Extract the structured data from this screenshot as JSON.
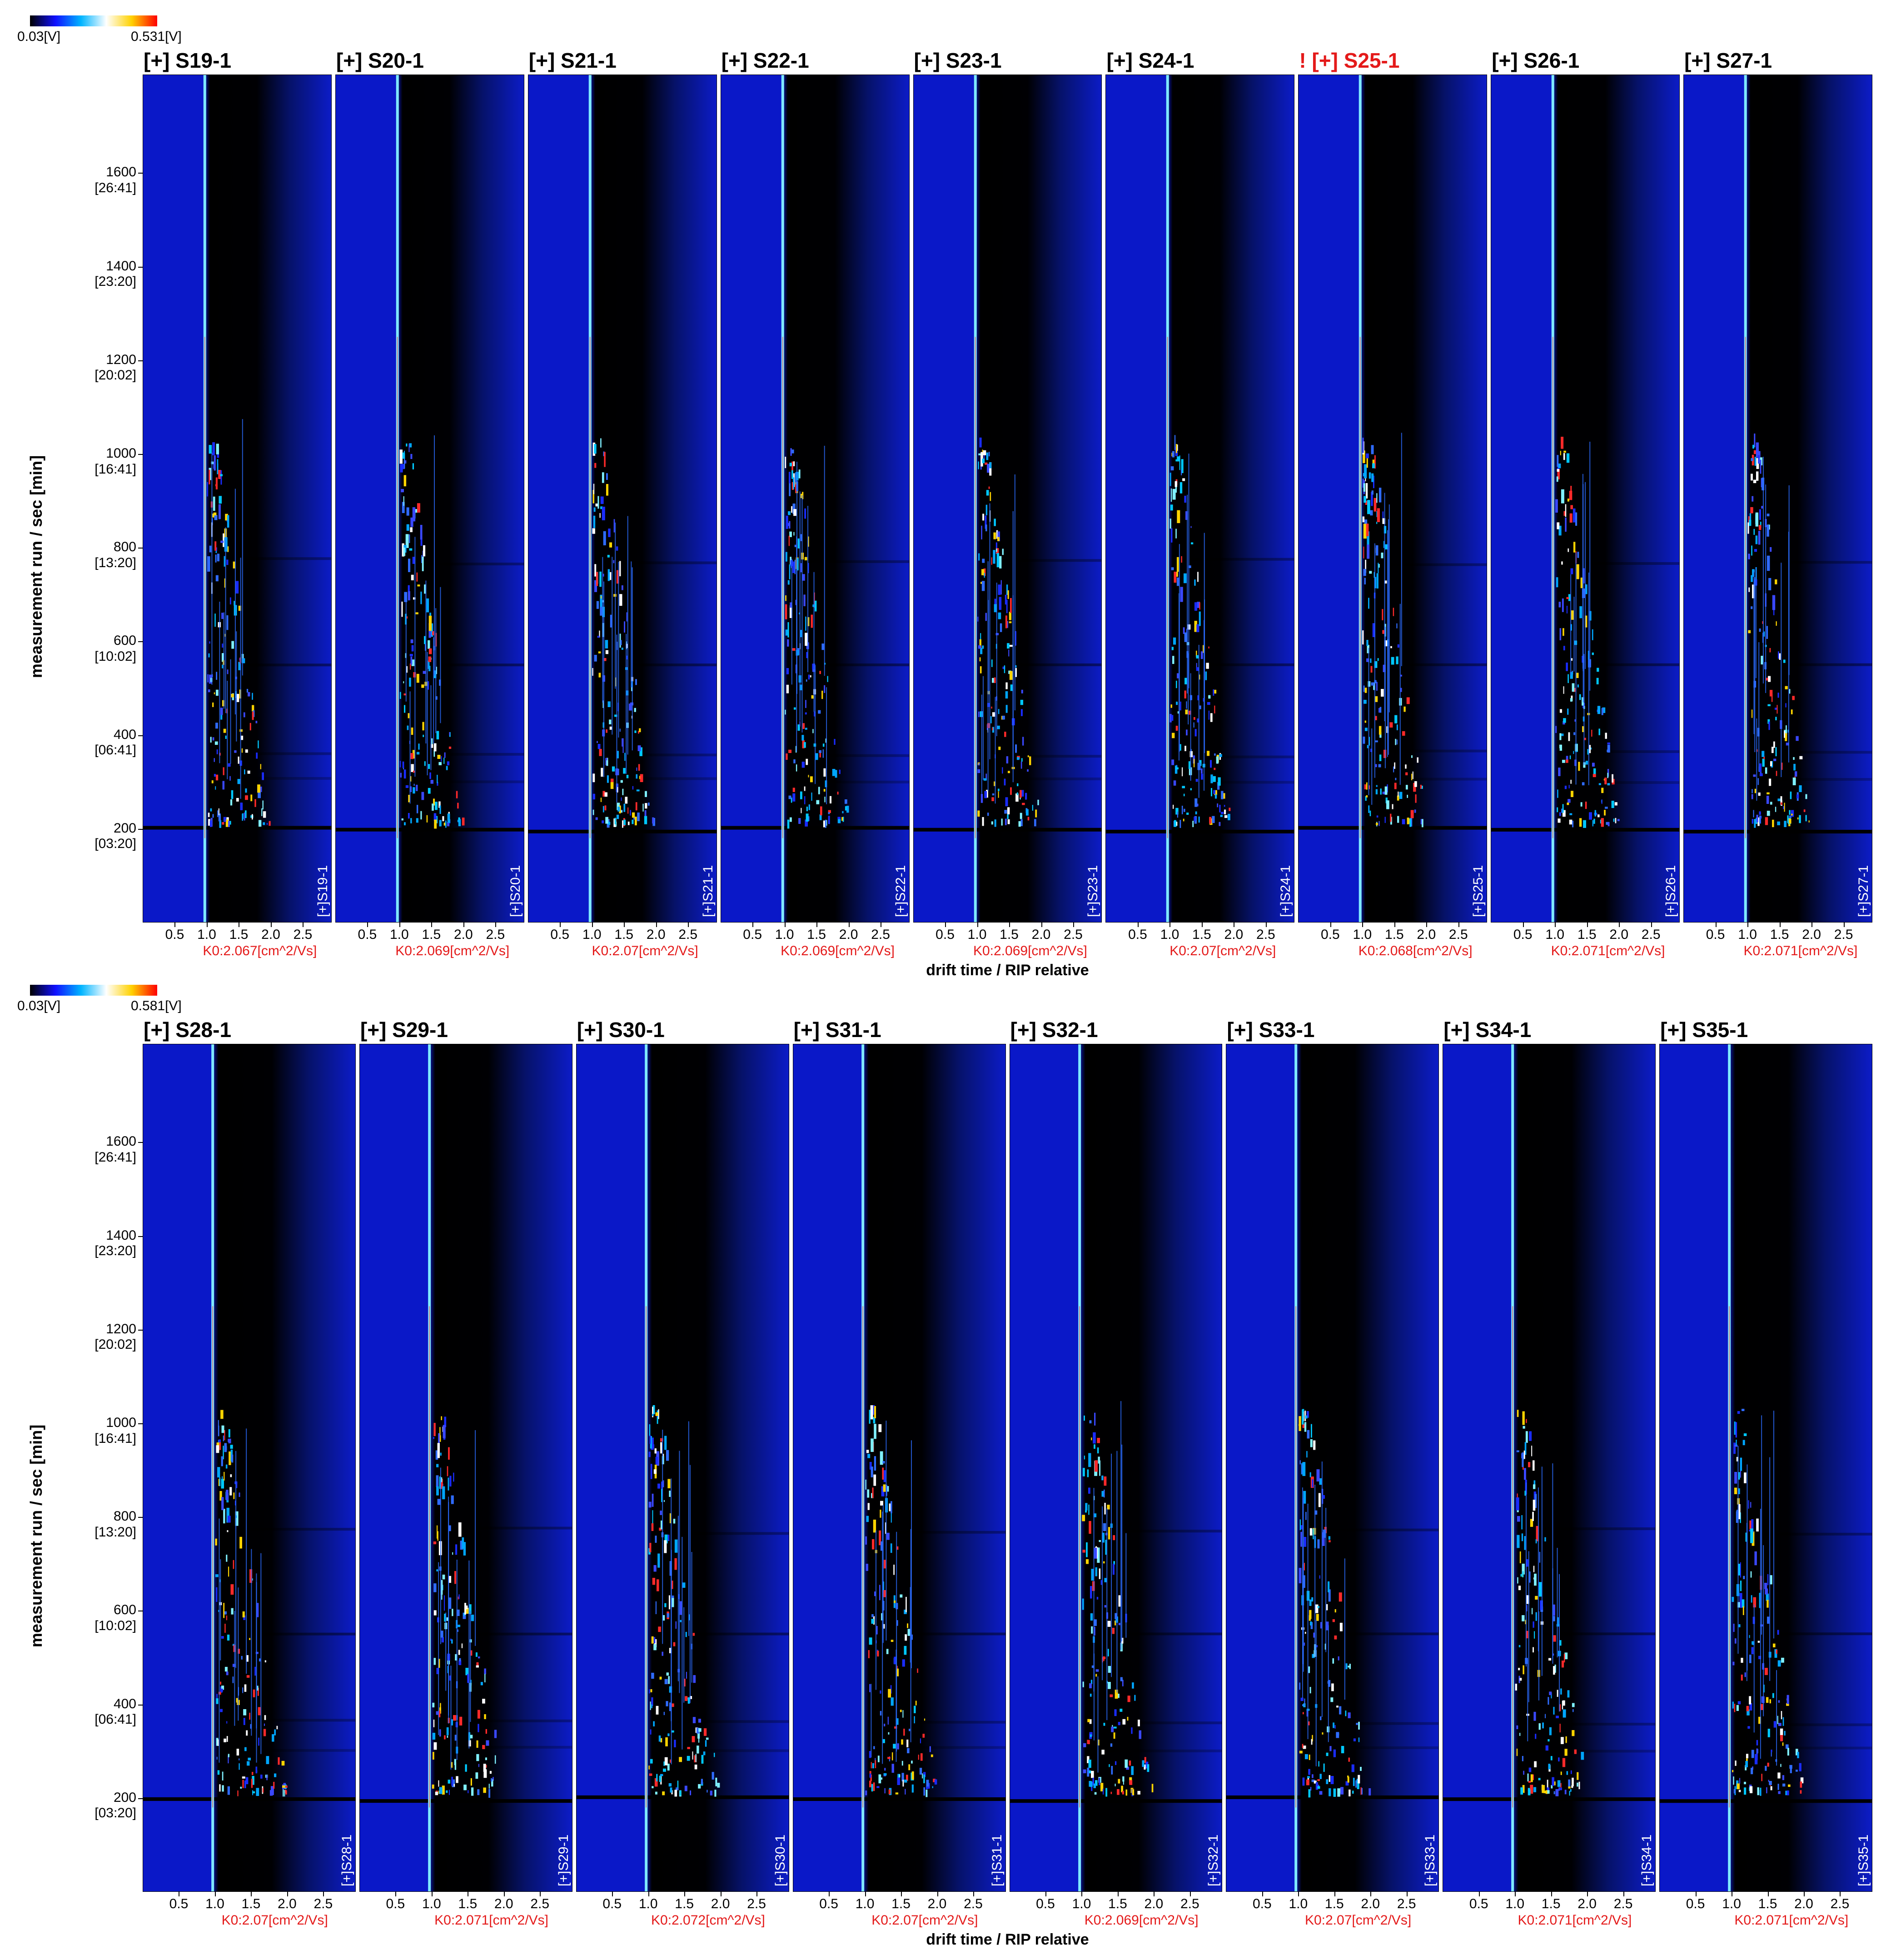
{
  "chart_data": {
    "type": "heatmap",
    "xlabel": "drift time / RIP relative",
    "ylabel": "measurement run / sec [min]",
    "x_ticks": [
      "0.5",
      "1.0",
      "1.5",
      "2.0",
      "2.5"
    ],
    "x_tick_values": [
      0.5,
      1.0,
      1.5,
      2.0,
      2.5
    ],
    "xlim": [
      0.0,
      2.95
    ],
    "y_ticks": [
      {
        "sec": "1600",
        "min": "[26:41]",
        "value": 1600
      },
      {
        "sec": "1400",
        "min": "[23:20]",
        "value": 1400
      },
      {
        "sec": "1200",
        "min": "[20:02]",
        "value": 1200
      },
      {
        "sec": "1000",
        "min": "[16:41]",
        "value": 1000
      },
      {
        "sec": "800",
        "min": "[13:20]",
        "value": 800
      },
      {
        "sec": "600",
        "min": "[10:02]",
        "value": 600
      },
      {
        "sec": "400",
        "min": "[06:41]",
        "value": 400
      },
      {
        "sec": "200",
        "min": "[03:20]",
        "value": 200
      }
    ],
    "ylim": [
      0,
      1810
    ],
    "colormap": [
      "#000000",
      "#1010ff",
      "#00b4ff",
      "#ffffff",
      "#ffd100",
      "#ff0000"
    ],
    "rows": [
      {
        "colorbar_min": "0.03[V]",
        "colorbar_max": "0.531[V]",
        "panels": [
          {
            "title": "[+] S19-1",
            "label": "[+]S19-1",
            "k0": "K0:2.067[cm^2/Vs]",
            "warn": false
          },
          {
            "title": "[+] S20-1",
            "label": "[+]S20-1",
            "k0": "K0:2.069[cm^2/Vs]",
            "warn": false
          },
          {
            "title": "[+] S21-1",
            "label": "[+]S21-1",
            "k0": "K0:2.07[cm^2/Vs]",
            "warn": false
          },
          {
            "title": "[+] S22-1",
            "label": "[+]S22-1",
            "k0": "K0:2.069[cm^2/Vs]",
            "warn": false
          },
          {
            "title": "[+] S23-1",
            "label": "[+]S23-1",
            "k0": "K0:2.069[cm^2/Vs]",
            "warn": false
          },
          {
            "title": "[+] S24-1",
            "label": "[+]S24-1",
            "k0": "K0:2.07[cm^2/Vs]",
            "warn": false
          },
          {
            "title": "! [+] S25-1",
            "label": "[+]S25-1",
            "k0": "K0:2.068[cm^2/Vs]",
            "warn": true
          },
          {
            "title": "[+] S26-1",
            "label": "[+]S26-1",
            "k0": "K0:2.071[cm^2/Vs]",
            "warn": false
          },
          {
            "title": "[+] S27-1",
            "label": "[+]S27-1",
            "k0": "K0:2.071[cm^2/Vs]",
            "warn": false
          }
        ]
      },
      {
        "colorbar_min": "0.03[V]",
        "colorbar_max": "0.581[V]",
        "panels": [
          {
            "title": "[+] S28-1",
            "label": "[+]S28-1",
            "k0": "K0:2.07[cm^2/Vs]",
            "warn": false
          },
          {
            "title": "[+] S29-1",
            "label": "[+]S29-1",
            "k0": "K0:2.071[cm^2/Vs]",
            "warn": false
          },
          {
            "title": "[+] S30-1",
            "label": "[+]S30-1",
            "k0": "K0:2.072[cm^2/Vs]",
            "warn": false
          },
          {
            "title": "[+] S31-1",
            "label": "[+]S31-1",
            "k0": "K0:2.07[cm^2/Vs]",
            "warn": false
          },
          {
            "title": "[+] S32-1",
            "label": "[+]S32-1",
            "k0": "K0:2.069[cm^2/Vs]",
            "warn": false
          },
          {
            "title": "[+] S33-1",
            "label": "[+]S33-1",
            "k0": "K0:2.07[cm^2/Vs]",
            "warn": false
          },
          {
            "title": "[+] S34-1",
            "label": "[+]S34-1",
            "k0": "K0:2.071[cm^2/Vs]",
            "warn": false
          },
          {
            "title": "[+] S35-1",
            "label": "[+]S35-1",
            "k0": "K0:2.071[cm^2/Vs]",
            "warn": false
          }
        ]
      }
    ]
  }
}
